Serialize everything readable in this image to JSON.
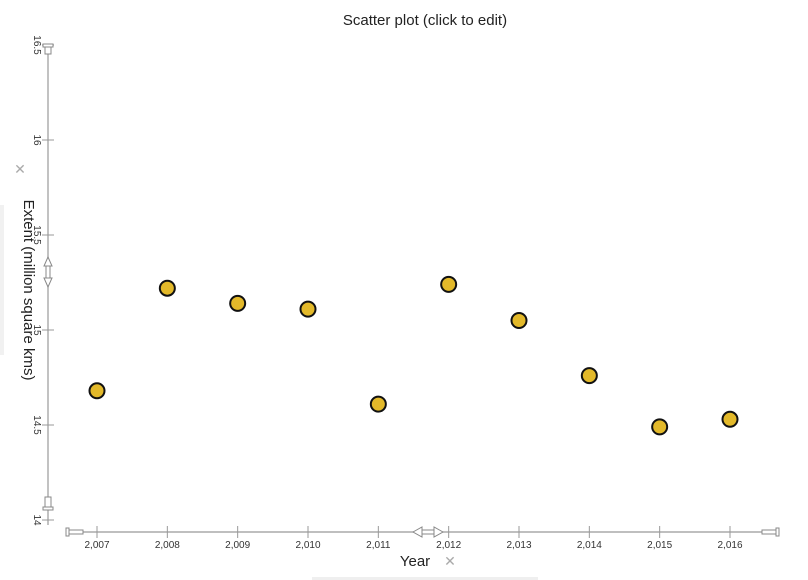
{
  "chart_data": {
    "type": "scatter",
    "title": "Scatter plot (click to edit)",
    "xlabel": "Year",
    "ylabel": "Extent (million square kms)",
    "xlim": [
      2006.6,
      2016.6
    ],
    "ylim": [
      14,
      16.5
    ],
    "x_ticks": [
      2007,
      2008,
      2009,
      2010,
      2011,
      2012,
      2013,
      2014,
      2015,
      2016
    ],
    "x_tick_labels": [
      "2,007",
      "2,008",
      "2,009",
      "2,010",
      "2,011",
      "2,012",
      "2,013",
      "2,014",
      "2,015",
      "2,016"
    ],
    "y_ticks": [
      14,
      14.5,
      15,
      15.5,
      16,
      16.5
    ],
    "y_tick_labels": [
      "14",
      "14.5",
      "15",
      "15.5",
      "16",
      "16.5"
    ],
    "grid": false,
    "series": [
      {
        "x": [
          2007,
          2008,
          2009,
          2010,
          2011,
          2012,
          2013,
          2014,
          2015,
          2016
        ],
        "y": [
          14.68,
          15.22,
          15.14,
          15.11,
          14.61,
          15.24,
          15.05,
          14.76,
          14.49,
          14.53
        ]
      }
    ],
    "marker_color": "#e3b92a",
    "marker_edge_color": "#111111",
    "axis_color": "#999999",
    "remove_icon": "remove-x-icon"
  }
}
